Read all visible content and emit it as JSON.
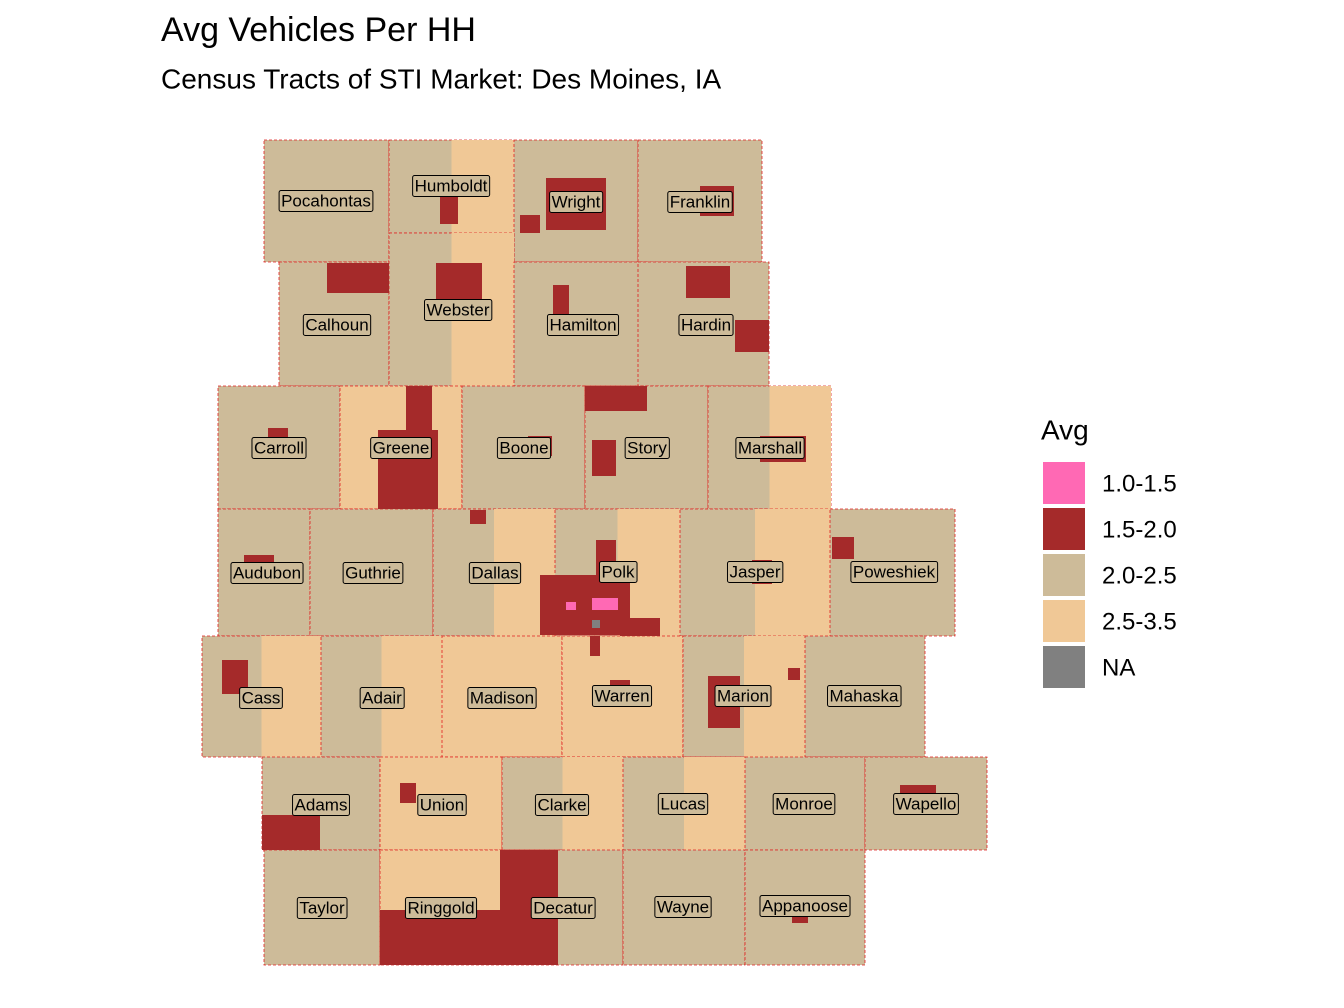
{
  "header": {
    "title": "Avg Vehicles Per HH",
    "subtitle": "Census Tracts of STI Market: Des Moines, IA"
  },
  "legend": {
    "title": "Avg",
    "items": [
      {
        "label": "1.0-1.5",
        "color": "#ff69b4"
      },
      {
        "label": "1.5-2.0",
        "color": "#a52a2a"
      },
      {
        "label": "2.0-2.5",
        "color": "#cdbb99"
      },
      {
        "label": "2.5-3.5",
        "color": "#f0c896"
      },
      {
        "label": "NA",
        "color": "#808080"
      }
    ]
  },
  "counties": [
    "Pocahontas",
    "Humboldt",
    "Wright",
    "Franklin",
    "Calhoun",
    "Webster",
    "Hamilton",
    "Hardin",
    "Carroll",
    "Greene",
    "Boone",
    "Story",
    "Marshall",
    "Audubon",
    "Guthrie",
    "Dallas",
    "Polk",
    "Jasper",
    "Poweshiek",
    "Cass",
    "Adair",
    "Madison",
    "Warren",
    "Marion",
    "Mahaska",
    "Adams",
    "Union",
    "Clarke",
    "Lucas",
    "Monroe",
    "Wapello",
    "Taylor",
    "Ringgold",
    "Decatur",
    "Wayne",
    "Appanoose"
  ]
}
